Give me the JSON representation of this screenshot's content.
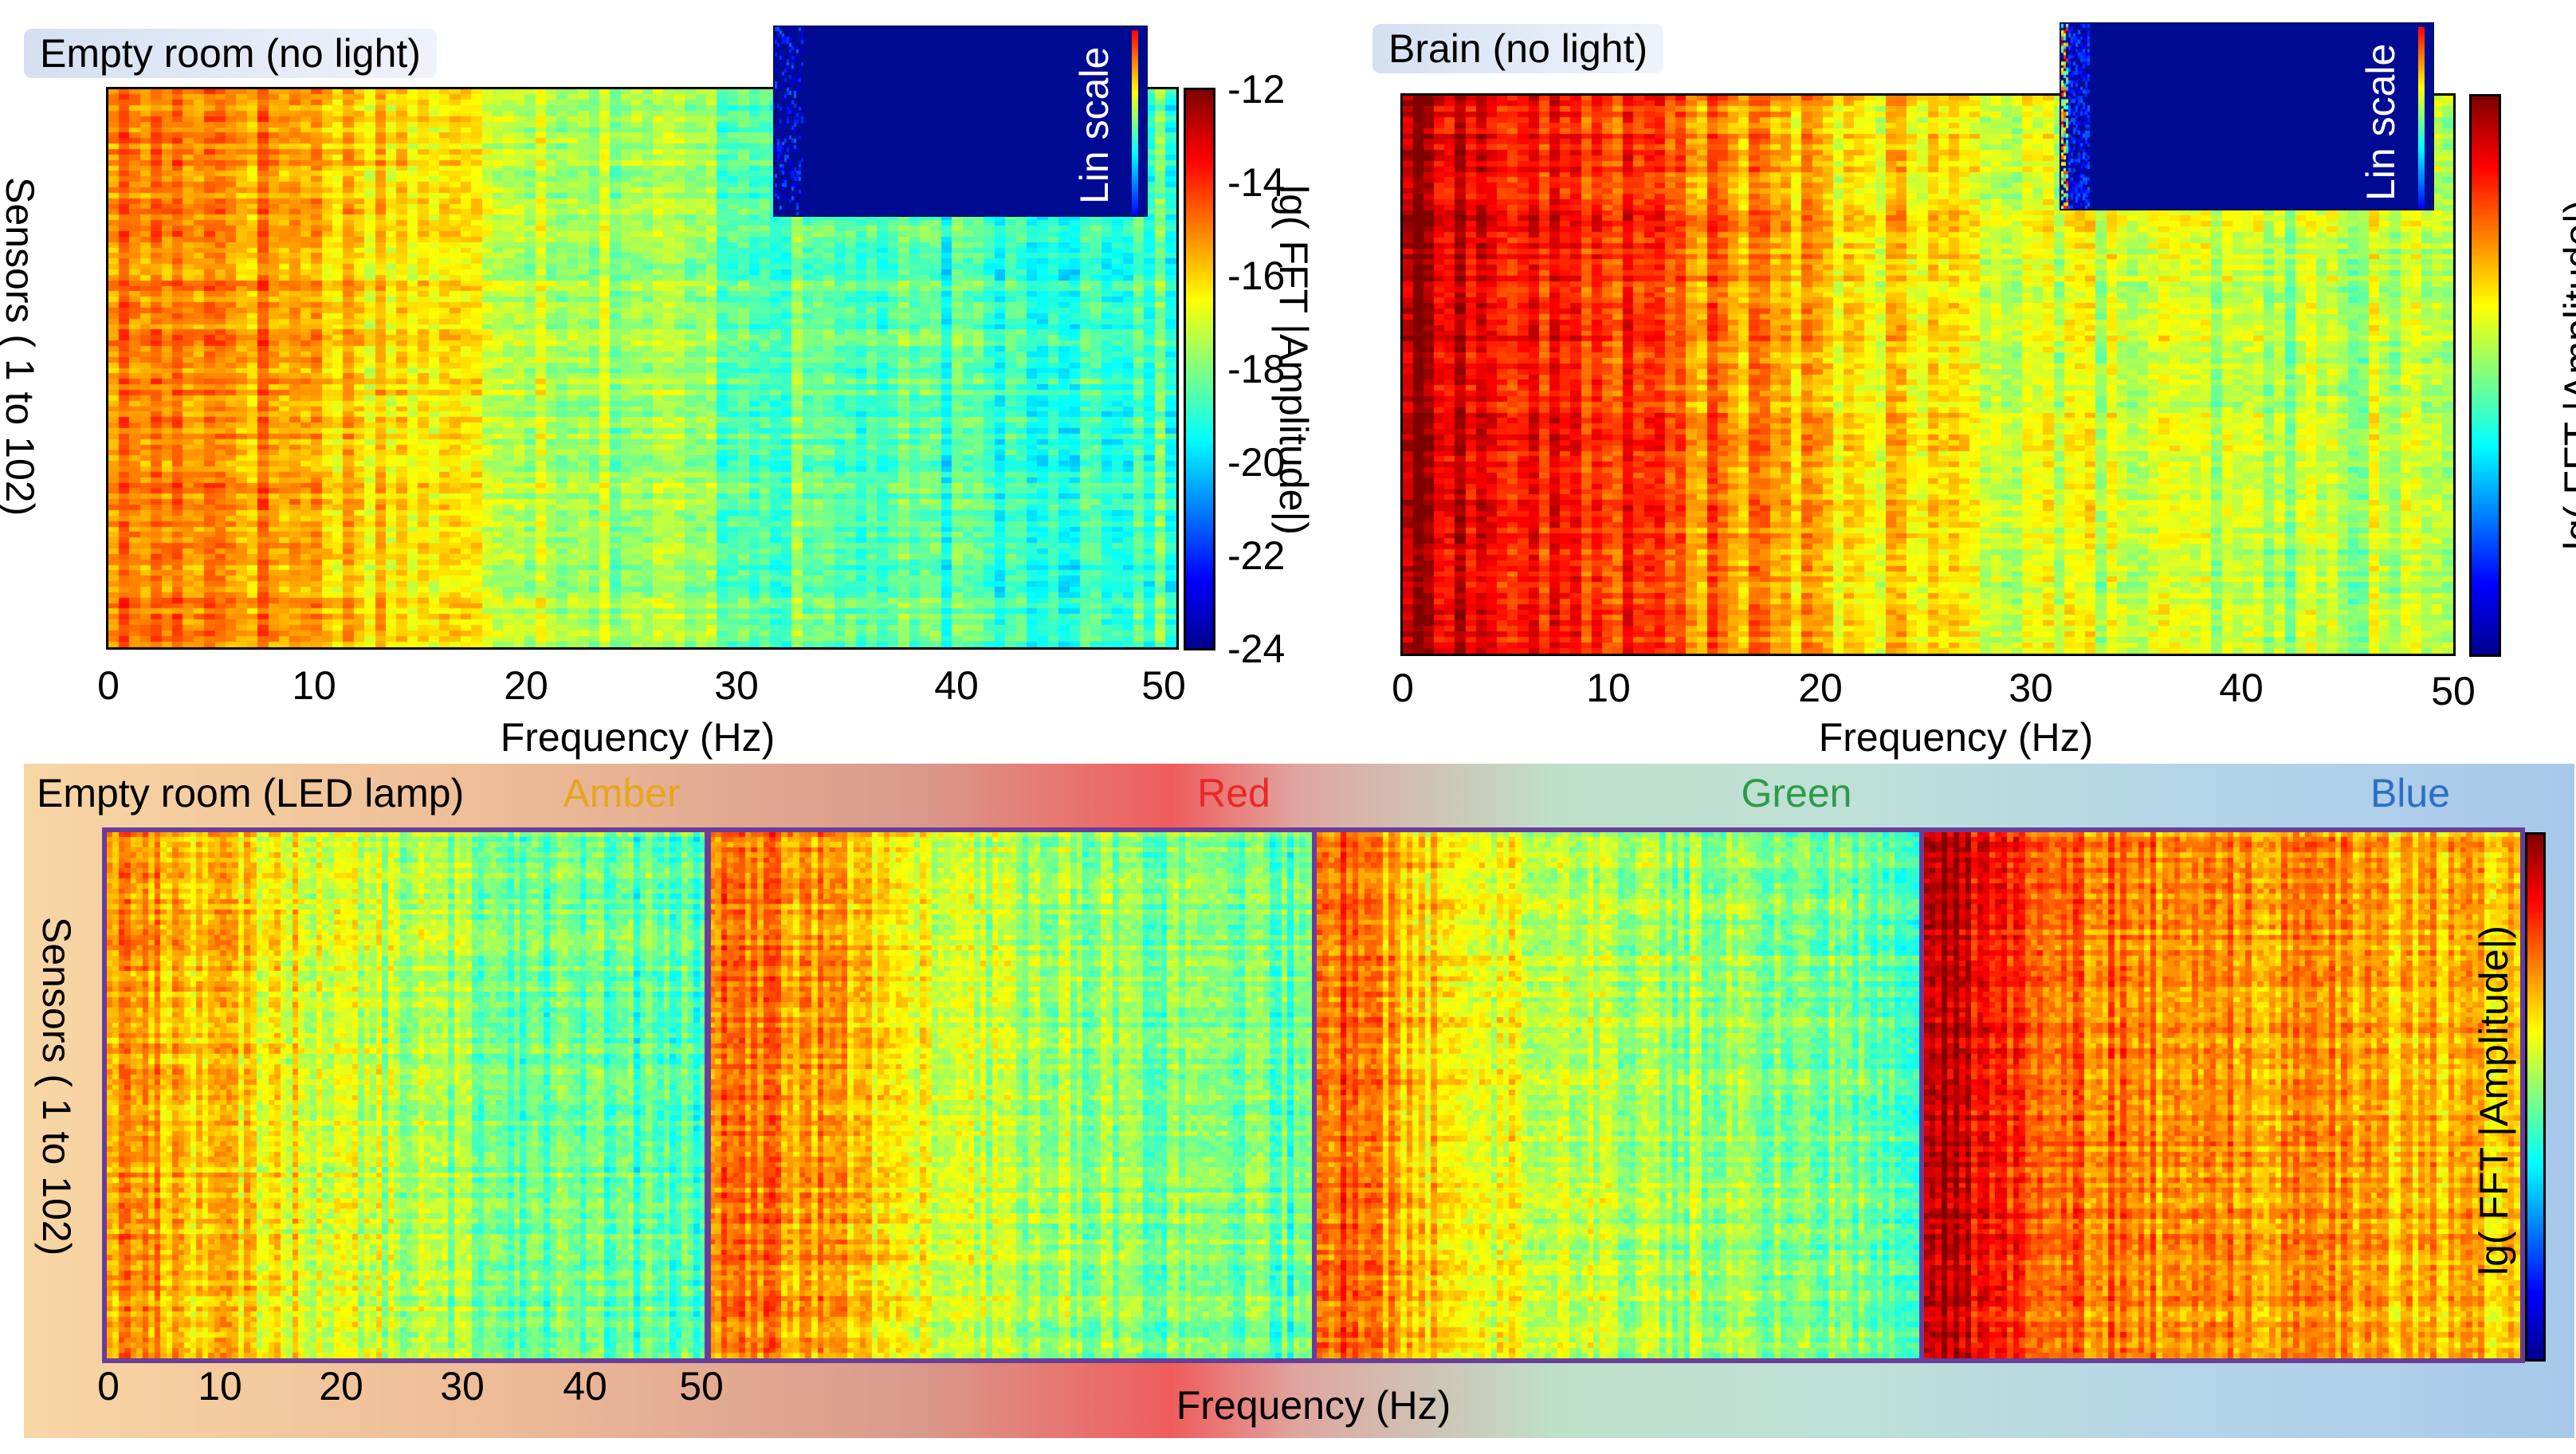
{
  "top_left": {
    "title": "Empty room (no light)",
    "inset_label": "Lin scale",
    "ylabel": "Sensors ( 1 to 102)",
    "xlabel": "Frequency (Hz)",
    "colorbar_label": "lg( FFT |Amplitude|)",
    "x_ticks": [
      "0",
      "10",
      "20",
      "30",
      "40",
      "50"
    ],
    "colorbar_ticks": [
      "-12",
      "-14",
      "-16",
      "-18",
      "-20",
      "-22",
      "-24"
    ]
  },
  "top_right": {
    "title": "Brain (no light)",
    "inset_label": "Lin scale",
    "xlabel": "Frequency (Hz)",
    "colorbar_label": "lg( FFT |Amplitude|)",
    "x_ticks": [
      "0",
      "10",
      "20",
      "30",
      "40",
      "50"
    ]
  },
  "bottom": {
    "title": "Empty room (LED lamp)",
    "ylabel": "Sensors ( 1 to 102)",
    "xlabel": "Frequency (Hz)",
    "colorbar_label": "lg( FFT |Amplitude|)",
    "x_ticks": [
      "0",
      "10",
      "20",
      "30",
      "40",
      "50"
    ],
    "panels": [
      {
        "label": "Amber",
        "color": "#e5a51e"
      },
      {
        "label": "Red",
        "color": "#e82828"
      },
      {
        "label": "Green",
        "color": "#2e9b4a"
      },
      {
        "label": "Blue",
        "color": "#2a6fc4"
      }
    ]
  },
  "colors": {
    "frame": "#6a3d9a",
    "inset_background": "#000b94"
  },
  "chart_data": [
    {
      "type": "heatmap",
      "title": "Empty room (no light)",
      "xlabel": "Frequency (Hz)",
      "ylabel": "Sensors ( 1 to 102)",
      "xlim": [
        0,
        50
      ],
      "ylim": [
        1,
        102
      ],
      "clim": [
        -24,
        -12
      ],
      "colorbar_label": "lg( FFT |Amplitude|)",
      "colormap": "jet",
      "band_profile": [
        {
          "freq": 2,
          "value": -15.0
        },
        {
          "freq": 4,
          "value": -14.8
        },
        {
          "freq": 10,
          "value": -15.6
        },
        {
          "freq": 20,
          "value": -17.0
        },
        {
          "freq": 30,
          "value": -18.2
        },
        {
          "freq": 40,
          "value": -18.8
        },
        {
          "freq": 50,
          "value": -18.6
        }
      ]
    },
    {
      "type": "heatmap",
      "title": "Brain (no light)",
      "xlabel": "Frequency (Hz)",
      "xlim": [
        0,
        50
      ],
      "ylim": [
        1,
        102
      ],
      "colorbar_label": "lg( FFT |Amplitude|)",
      "colormap": "jet",
      "band_profile": [
        {
          "freq": 1,
          "value": -12.5
        },
        {
          "freq": 5,
          "value": -13.8
        },
        {
          "freq": 10,
          "value": -14.0
        },
        {
          "freq": 20,
          "value": -16.0
        },
        {
          "freq": 30,
          "value": -16.8
        },
        {
          "freq": 40,
          "value": -17.4
        },
        {
          "freq": 50,
          "value": -17.2
        }
      ]
    },
    {
      "type": "heatmap",
      "title": "Empty room (LED lamp) Amber",
      "xlim": [
        0,
        50
      ],
      "colormap": "jet",
      "band_profile": [
        {
          "freq": 2,
          "value": -15.2
        },
        {
          "freq": 10,
          "value": -16.0
        },
        {
          "freq": 20,
          "value": -17.0
        },
        {
          "freq": 30,
          "value": -17.8
        },
        {
          "freq": 40,
          "value": -18.4
        },
        {
          "freq": 50,
          "value": -18.6
        }
      ]
    },
    {
      "type": "heatmap",
      "title": "Empty room (LED lamp) Red",
      "xlim": [
        0,
        50
      ],
      "colormap": "jet",
      "band_profile": [
        {
          "freq": 2,
          "value": -15.0
        },
        {
          "freq": 10,
          "value": -15.4
        },
        {
          "freq": 20,
          "value": -17.2
        },
        {
          "freq": 30,
          "value": -17.6
        },
        {
          "freq": 40,
          "value": -18.2
        },
        {
          "freq": 50,
          "value": -18.4
        }
      ]
    },
    {
      "type": "heatmap",
      "title": "Empty room (LED lamp) Green",
      "xlim": [
        0,
        50
      ],
      "colormap": "jet",
      "band_profile": [
        {
          "freq": 2,
          "value": -14.6
        },
        {
          "freq": 10,
          "value": -16.2
        },
        {
          "freq": 20,
          "value": -17.0
        },
        {
          "freq": 30,
          "value": -17.6
        },
        {
          "freq": 40,
          "value": -18.0
        },
        {
          "freq": 50,
          "value": -18.2
        }
      ]
    },
    {
      "type": "heatmap",
      "title": "Empty room (LED lamp) Blue",
      "xlim": [
        0,
        50
      ],
      "colormap": "jet",
      "band_profile": [
        {
          "freq": 2,
          "value": -12.8
        },
        {
          "freq": 10,
          "value": -14.6
        },
        {
          "freq": 20,
          "value": -15.2
        },
        {
          "freq": 30,
          "value": -15.4
        },
        {
          "freq": 40,
          "value": -15.6
        },
        {
          "freq": 50,
          "value": -15.8
        }
      ]
    }
  ]
}
